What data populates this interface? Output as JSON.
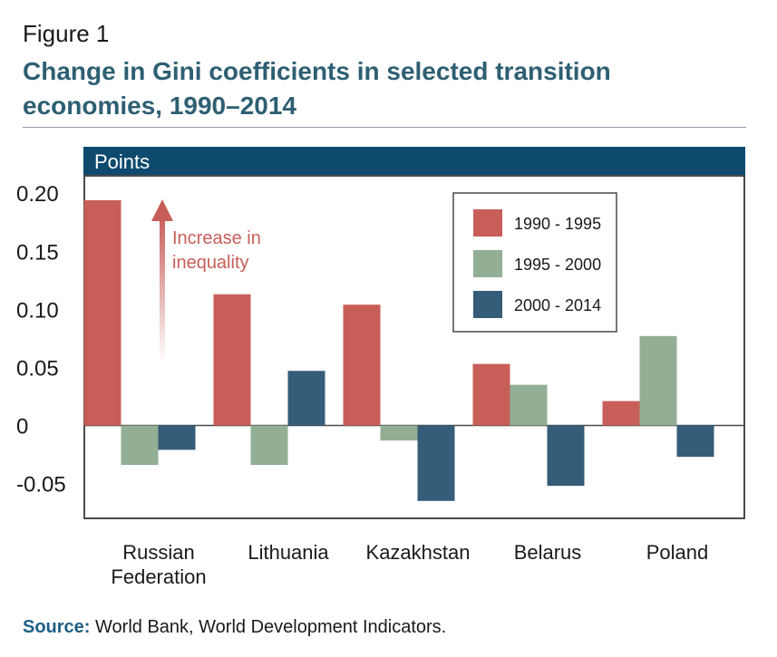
{
  "figure": {
    "label": "Figure 1",
    "title": "Change in Gini coefficients in selected transition economies, 1990–2014"
  },
  "source": {
    "key": "Source:",
    "text": "World Bank, World Development Indicators."
  },
  "colors": {
    "title": "#2e5f73",
    "header_band": "#0e4a6e",
    "series_1990_1995": "#c85e58",
    "series_1995_2000": "#92ae94",
    "series_2000_2014": "#355c78",
    "annotation": "#c85e58"
  },
  "annotation": {
    "line1": "Increase in",
    "line2": "inequality"
  },
  "chart_data": {
    "type": "bar",
    "title": "Change in Gini coefficients in selected transition economies, 1990–2014",
    "ylabel": "Points",
    "xlabel": "",
    "ylim": [
      -0.08,
      0.215
    ],
    "yticks": [
      0.2,
      0.15,
      0.1,
      0.05,
      0,
      -0.05
    ],
    "ytick_labels": [
      "0.20",
      "0.15",
      "0.10",
      "0.05",
      "0",
      "-0.05"
    ],
    "categories": [
      [
        "Russian",
        "Federation"
      ],
      [
        "Lithuania"
      ],
      [
        "Kazakhstan"
      ],
      [
        "Belarus"
      ],
      [
        "Poland"
      ]
    ],
    "series": [
      {
        "name": "1990 - 1995",
        "color": "#c85e58",
        "values": [
          0.194,
          0.113,
          0.104,
          0.053,
          0.021
        ]
      },
      {
        "name": "1995 - 2000",
        "color": "#92ae94",
        "values": [
          -0.034,
          -0.034,
          -0.013,
          0.035,
          0.077
        ]
      },
      {
        "name": "2000 - 2014",
        "color": "#355c78",
        "values": [
          -0.021,
          0.047,
          -0.065,
          -0.052,
          -0.027
        ]
      }
    ],
    "legend_position": "top-right",
    "grid": false
  }
}
